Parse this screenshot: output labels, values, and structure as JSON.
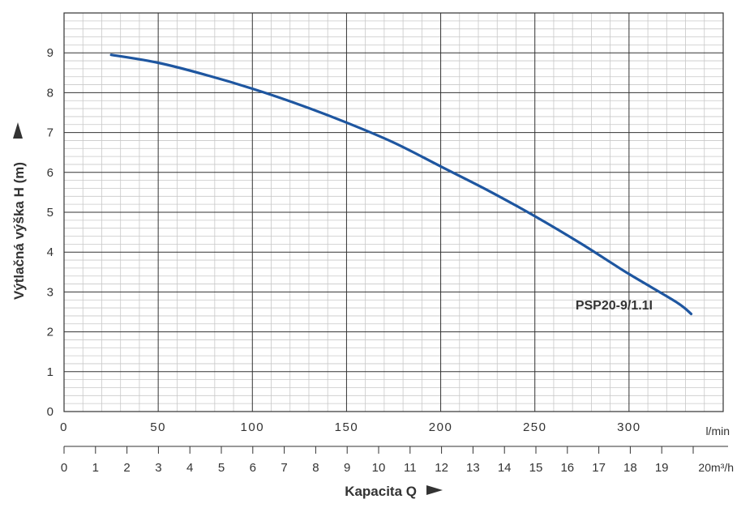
{
  "chart_data": {
    "type": "line",
    "xlabel": "Kapacita Q",
    "ylabel": "Výtlačná výška H (m)",
    "x_unit_primary": "l/min",
    "x_unit_secondary": "20m³/h",
    "xlim": [
      0,
      350
    ],
    "ylim": [
      0,
      10
    ],
    "x_ticks_primary": [
      "0",
      "50",
      "100",
      "150",
      "200",
      "250",
      "300"
    ],
    "x_ticks_secondary": [
      "0",
      "1",
      "2",
      "3",
      "4",
      "5",
      "6",
      "7",
      "8",
      "9",
      "10",
      "11",
      "12",
      "13",
      "14",
      "15",
      "16",
      "17",
      "18",
      "19"
    ],
    "y_ticks": [
      "0",
      "1",
      "2",
      "3",
      "4",
      "5",
      "6",
      "7",
      "8",
      "9"
    ],
    "grid": true,
    "series": [
      {
        "name": "PSP20-9/1.1I",
        "x": [
          25,
          50,
          75,
          100,
          125,
          150,
          175,
          200,
          225,
          250,
          275,
          300,
          325,
          333
        ],
        "y": [
          8.95,
          8.75,
          8.45,
          8.1,
          7.7,
          7.25,
          6.75,
          6.15,
          5.55,
          4.9,
          4.2,
          3.45,
          2.75,
          2.45
        ]
      }
    ],
    "colors": {
      "line": "#1e56a0",
      "grid_major": "#333333",
      "grid_minor": "#c8c8c8"
    }
  }
}
